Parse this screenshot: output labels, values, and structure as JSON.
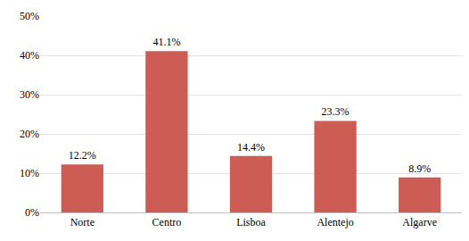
{
  "chart_data": {
    "type": "bar",
    "categories": [
      "Norte",
      "Centro",
      "Lisboa",
      "Alentejo",
      "Algarve"
    ],
    "values": [
      12.2,
      41.1,
      14.4,
      23.3,
      8.9
    ],
    "value_labels": [
      "12.2%",
      "41.1%",
      "14.4%",
      "23.3%",
      "8.9%"
    ],
    "color": "#cd5c54",
    "ylim": [
      0,
      50
    ],
    "yticks": [
      {
        "value": 0,
        "label": "0%"
      },
      {
        "value": 10,
        "label": "10%"
      },
      {
        "value": 20,
        "label": "20%"
      },
      {
        "value": 30,
        "label": "30%"
      },
      {
        "value": 40,
        "label": "40%"
      },
      {
        "value": 50,
        "label": "50%"
      }
    ],
    "grid": true,
    "data_labels": true
  }
}
